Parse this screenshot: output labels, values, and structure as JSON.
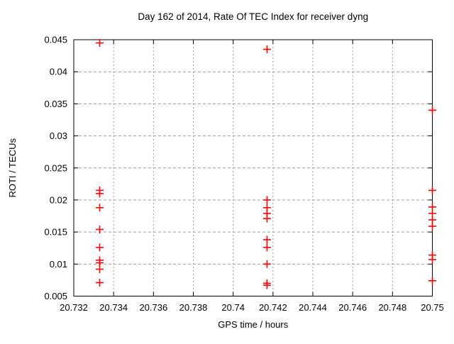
{
  "window": {
    "background": "#ffffff"
  },
  "chart_data": {
    "type": "scatter",
    "title": "Day 162 of 2014, Rate Of TEC Index for receiver dyng",
    "xlabel": "GPS time / hours",
    "ylabel": "ROTI / TECUs",
    "xlim": [
      20.732,
      20.75
    ],
    "ylim": [
      0.005,
      0.045
    ],
    "xtick_values": [
      20.732,
      20.734,
      20.736,
      20.738,
      20.74,
      20.742,
      20.744,
      20.746,
      20.748,
      20.75
    ],
    "xtick_labels": [
      "20.732",
      "20.734",
      "20.736",
      "20.738",
      "20.74",
      "20.742",
      "20.744",
      "20.746",
      "20.748",
      "20.75"
    ],
    "ytick_values": [
      0.005,
      0.01,
      0.015,
      0.02,
      0.025,
      0.03,
      0.035,
      0.04,
      0.045
    ],
    "ytick_labels": [
      "0.005",
      "0.01",
      "0.015",
      "0.02",
      "0.025",
      "0.03",
      "0.035",
      "0.04",
      "0.045"
    ],
    "grid": true,
    "legend": "none",
    "marker": {
      "shape": "plus",
      "color": "#ff0000",
      "size": 11
    },
    "colors": {
      "marker": "#ff0000",
      "grid": "#9c9c9c",
      "axis": "#000000",
      "text": "#000000",
      "background": "#ffffff"
    },
    "series": [
      {
        "name": "ROTI",
        "color": "#ff0000",
        "points": [
          [
            20.7333,
            0.0445
          ],
          [
            20.7333,
            0.0215
          ],
          [
            20.7333,
            0.021
          ],
          [
            20.7333,
            0.0188
          ],
          [
            20.7333,
            0.0154
          ],
          [
            20.7333,
            0.0126
          ],
          [
            20.7333,
            0.0106
          ],
          [
            20.7333,
            0.0102
          ],
          [
            20.7333,
            0.0092
          ],
          [
            20.7333,
            0.0071
          ],
          [
            20.7417,
            0.0435
          ],
          [
            20.7417,
            0.02
          ],
          [
            20.7417,
            0.0188
          ],
          [
            20.7417,
            0.0179
          ],
          [
            20.7417,
            0.0171
          ],
          [
            20.7417,
            0.0138
          ],
          [
            20.7417,
            0.0126
          ],
          [
            20.7417,
            0.01
          ],
          [
            20.7417,
            0.007
          ],
          [
            20.7417,
            0.0067
          ],
          [
            20.75,
            0.034
          ],
          [
            20.75,
            0.0215
          ],
          [
            20.75,
            0.0189
          ],
          [
            20.75,
            0.0179
          ],
          [
            20.75,
            0.0169
          ],
          [
            20.75,
            0.0159
          ],
          [
            20.75,
            0.0114
          ],
          [
            20.75,
            0.0107
          ],
          [
            20.75,
            0.0074
          ]
        ]
      }
    ]
  }
}
